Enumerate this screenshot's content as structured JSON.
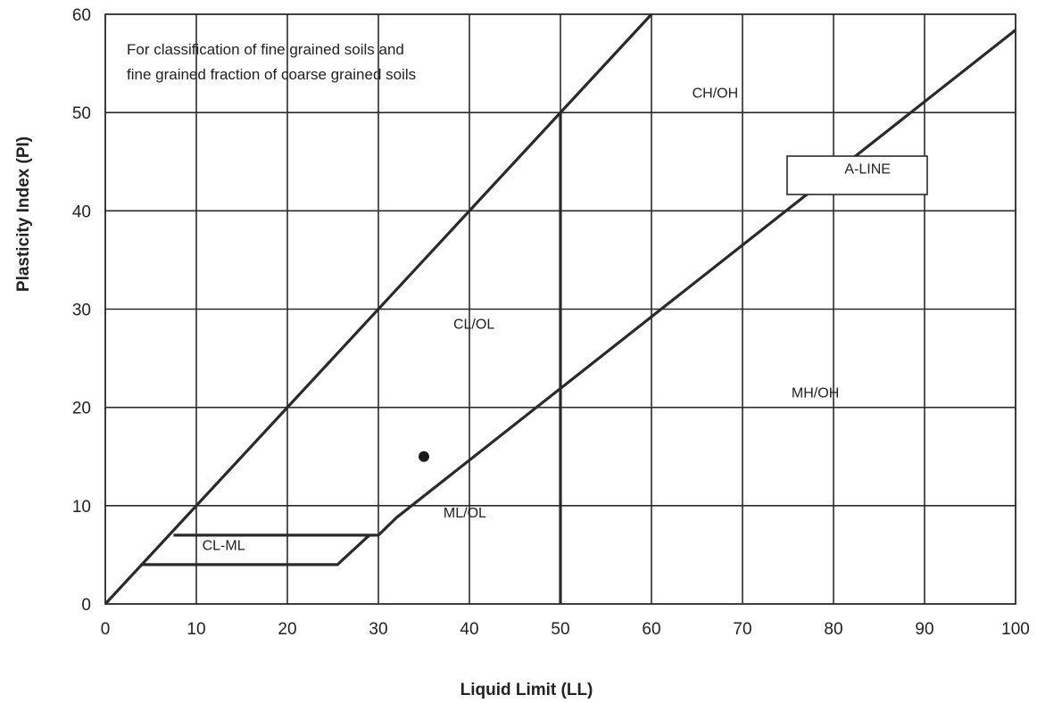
{
  "chart_data": {
    "type": "line",
    "title": "",
    "xlabel": "Liquid Limit (LL)",
    "ylabel": "Plasticity Index (PI)",
    "xlim": [
      0,
      100
    ],
    "ylim": [
      0,
      60
    ],
    "x_ticks": [
      0,
      10,
      20,
      30,
      40,
      50,
      60,
      70,
      80,
      90,
      100
    ],
    "y_ticks": [
      0,
      10,
      20,
      30,
      40,
      50,
      60
    ],
    "grid": true,
    "note_lines": [
      "For classification of fine grained soils and",
      "fine grained fraction of coarse grained soils"
    ],
    "series": [
      {
        "id": "u-line",
        "points": [
          [
            0,
            0
          ],
          [
            60,
            60
          ]
        ]
      },
      {
        "id": "a-line",
        "points": [
          [
            7.5,
            7
          ],
          [
            30,
            7
          ],
          [
            32,
            8.8
          ],
          [
            100,
            58.4
          ]
        ]
      },
      {
        "id": "cl-ml-lower",
        "points": [
          [
            4,
            4
          ],
          [
            25.5,
            4
          ],
          [
            29,
            7
          ]
        ]
      },
      {
        "id": "ll-50-line",
        "points": [
          [
            50,
            0
          ],
          [
            50,
            50
          ]
        ]
      }
    ],
    "points": [
      {
        "x": 35,
        "y": 15
      }
    ],
    "region_labels": [
      {
        "text": "CH/OH",
        "x": 67,
        "y": 51.5
      },
      {
        "text": "CL/OL",
        "x": 40.5,
        "y": 28
      },
      {
        "text": "MH/OH",
        "x": 78,
        "y": 21
      },
      {
        "text": "ML/OL",
        "x": 39.5,
        "y": 8.8
      },
      {
        "text": "CL-ML",
        "x": 13,
        "y": 5.5
      }
    ],
    "a_line_label": {
      "text": "A-LINE",
      "x": 82,
      "y": 44
    }
  }
}
